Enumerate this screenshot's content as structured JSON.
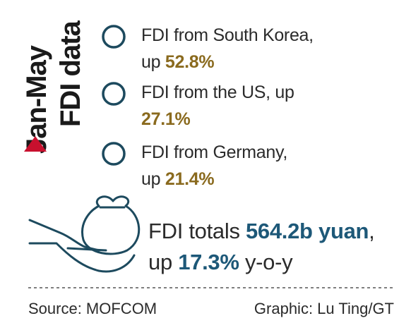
{
  "sidebar": {
    "title_line1": "Jan-May",
    "title_line2": "FDI data"
  },
  "items": [
    {
      "text": "FDI from South Korea,",
      "up": "up",
      "value": "52.8%"
    },
    {
      "text": "FDI from the US, up",
      "value": "27.1%"
    },
    {
      "text": "FDI from Germany,",
      "up": "up",
      "value": "21.4%"
    }
  ],
  "total": {
    "label": "FDI totals",
    "amount": "564.2b yuan",
    "sep": ",",
    "up": "up",
    "growth": "17.3%",
    "suffix": "y-o-y"
  },
  "footer": {
    "source": "Source: MOFCOM",
    "credit": "Graphic: Lu Ting/GT"
  }
}
